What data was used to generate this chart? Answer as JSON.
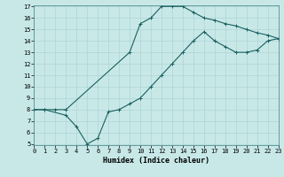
{
  "xlabel": "Humidex (Indice chaleur)",
  "ylabel": "",
  "bg_color": "#c8e8e8",
  "line_color": "#1a6060",
  "line1_x": [
    0,
    1,
    2,
    3,
    9,
    10,
    11,
    12,
    13,
    14,
    15,
    16,
    17,
    18,
    19,
    20,
    21,
    22,
    23
  ],
  "line1_y": [
    8,
    8,
    8,
    8,
    13,
    15.5,
    16,
    17,
    17,
    17,
    16.5,
    16,
    15.8,
    15.5,
    15.3,
    15,
    14.7,
    14.5,
    14.2
  ],
  "line2_x": [
    0,
    1,
    3,
    4,
    5,
    6,
    7,
    8,
    9,
    10,
    11,
    12,
    13,
    14,
    15,
    16,
    17,
    18,
    19,
    20,
    21,
    22,
    23
  ],
  "line2_y": [
    8,
    8,
    7.5,
    6.5,
    5,
    5.5,
    7.8,
    8.0,
    8.5,
    9,
    10,
    11,
    12,
    13,
    14,
    14.8,
    14,
    13.5,
    13,
    13,
    13.2,
    14,
    14.2
  ],
  "xlim": [
    0,
    23
  ],
  "ylim": [
    5,
    17
  ],
  "xticks": [
    0,
    1,
    2,
    3,
    4,
    5,
    6,
    7,
    8,
    9,
    10,
    11,
    12,
    13,
    14,
    15,
    16,
    17,
    18,
    19,
    20,
    21,
    22,
    23
  ],
  "yticks": [
    5,
    6,
    7,
    8,
    9,
    10,
    11,
    12,
    13,
    14,
    15,
    16,
    17
  ],
  "marker": "+",
  "markersize": 3,
  "linewidth": 0.8,
  "tick_fontsize": 5.0,
  "xlabel_fontsize": 6.0
}
